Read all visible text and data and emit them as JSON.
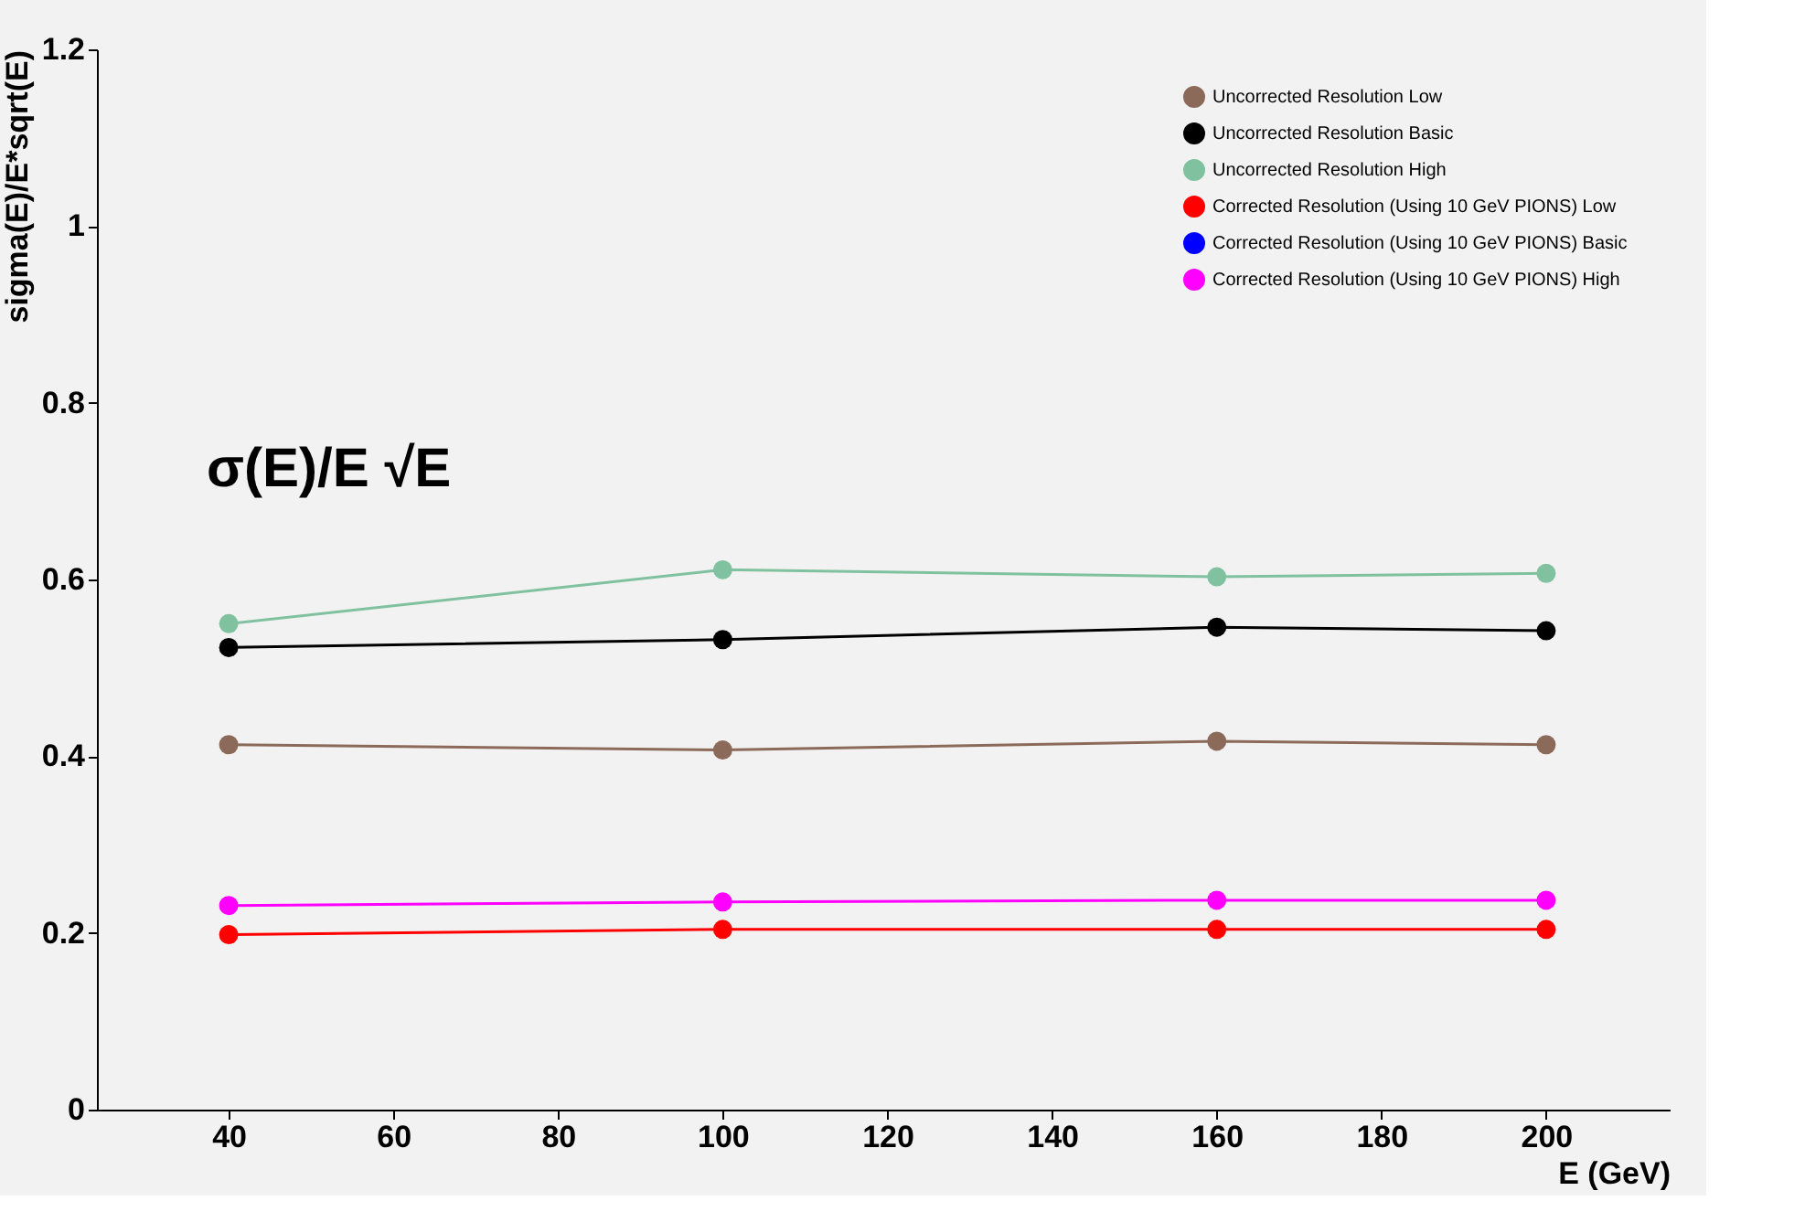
{
  "chart_data": {
    "type": "line",
    "xlabel": "E (GeV)",
    "ylabel": "sigma(E)/E*sqrt(E)",
    "x": [
      40,
      100,
      160,
      200
    ],
    "xlim": [
      24,
      215
    ],
    "xticks": [
      40,
      60,
      80,
      100,
      120,
      140,
      160,
      180,
      200
    ],
    "ylim": [
      0,
      1.2
    ],
    "yticks": [
      0,
      0.2,
      0.4,
      0.6,
      0.8,
      1,
      1.2
    ],
    "grid": false,
    "legend": "top right",
    "marker": "circle",
    "annotations": [
      {
        "text": "σ(E)/E √E"
      }
    ],
    "series": [
      {
        "name": "Uncorrected Resolution Low",
        "color": "#8c6a5a",
        "values": [
          0.413,
          0.407,
          0.417,
          0.413
        ]
      },
      {
        "name": "Uncorrected Resolution Basic",
        "color": "#000000",
        "values": [
          0.523,
          0.532,
          0.546,
          0.542
        ]
      },
      {
        "name": "Uncorrected Resolution High",
        "color": "#80c2a0",
        "values": [
          0.55,
          0.611,
          0.603,
          0.607
        ]
      },
      {
        "name": "Corrected Resolution (Using 10  GeV PIONS) Low",
        "color": "#ff0000",
        "values": [
          0.198,
          0.204,
          0.204,
          0.204
        ]
      },
      {
        "name": "Corrected Resolution (Using 10  GeV PIONS) Basic",
        "color": "#0000ff",
        "values": [
          null,
          null,
          null,
          null
        ]
      },
      {
        "name": "Corrected Resolution (Using 10  GeV PIONS) High",
        "color": "#ff00ff",
        "values": [
          0.231,
          0.235,
          0.237,
          0.237
        ]
      }
    ]
  }
}
